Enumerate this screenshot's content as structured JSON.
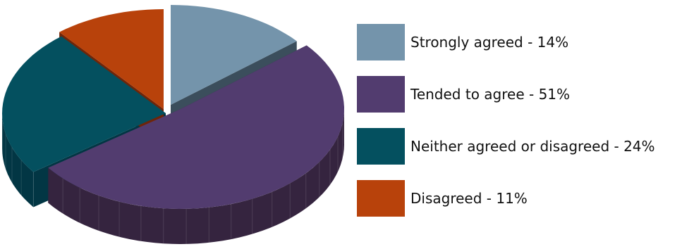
{
  "chart_data": {
    "type": "pie",
    "style": "3d-exploded",
    "slices": [
      {
        "label": "Strongly agreed - 14%",
        "value": 14,
        "color": "#7494ab",
        "side": "#3b4e5c"
      },
      {
        "label": "Tended to agree - 51%",
        "value": 51,
        "color": "#523c6f",
        "side": "#35243f"
      },
      {
        "label": "Neither agreed or disagreed - 24%",
        "value": 24,
        "color": "#04505f",
        "side": "#023644"
      },
      {
        "label": "Disagreed - 11%",
        "value": 11,
        "color": "#b8420b",
        "side": "#6f2508"
      }
    ],
    "legend_position": "right"
  }
}
